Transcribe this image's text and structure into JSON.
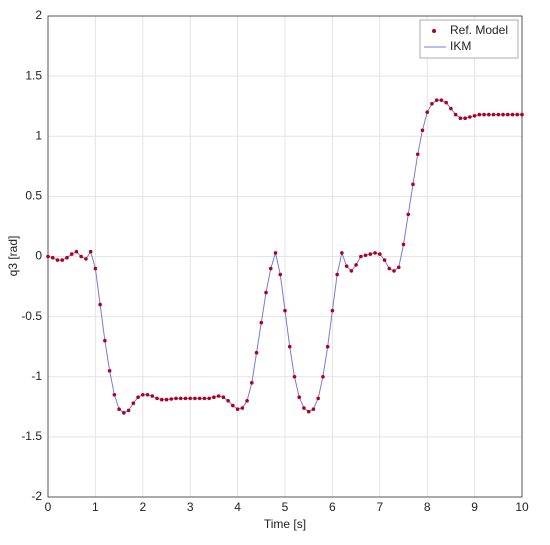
{
  "chart_data": {
    "type": "line",
    "xlabel": "Time [s]",
    "ylabel": "q3 [rad]",
    "x": [
      0,
      0.1,
      0.2,
      0.3,
      0.4,
      0.5,
      0.6,
      0.7,
      0.8,
      0.9,
      1,
      1.1,
      1.2,
      1.3,
      1.4,
      1.5,
      1.6,
      1.7,
      1.8,
      1.9,
      2,
      2.1,
      2.2,
      2.3,
      2.4,
      2.5,
      2.6,
      2.7,
      2.8,
      2.9,
      3,
      3.1,
      3.2,
      3.3,
      3.4,
      3.5,
      3.6,
      3.7,
      3.8,
      3.9,
      4,
      4.1,
      4.2,
      4.3,
      4.4,
      4.5,
      4.6,
      4.7,
      4.8,
      4.9,
      5,
      5.1,
      5.2,
      5.3,
      5.4,
      5.5,
      5.6,
      5.7,
      5.8,
      5.9,
      6,
      6.1,
      6.2,
      6.3,
      6.4,
      6.5,
      6.6,
      6.7,
      6.8,
      6.9,
      7,
      7.1,
      7.2,
      7.3,
      7.4,
      7.5,
      7.6,
      7.7,
      7.8,
      7.9,
      8,
      8.1,
      8.2,
      8.3,
      8.4,
      8.5,
      8.6,
      8.7,
      8.8,
      8.9,
      9,
      9.1,
      9.2,
      9.3,
      9.4,
      9.5,
      9.6,
      9.7,
      9.8,
      9.9,
      10
    ],
    "series": [
      {
        "name": "Ref. Model",
        "color": "#b0001e",
        "marker": "dot",
        "values": [
          0,
          -0.01,
          -0.03,
          -0.03,
          -0.01,
          0.02,
          0.04,
          0,
          -0.02,
          0.04,
          -0.1,
          -0.4,
          -0.7,
          -0.95,
          -1.15,
          -1.27,
          -1.3,
          -1.28,
          -1.22,
          -1.17,
          -1.15,
          -1.15,
          -1.16,
          -1.18,
          -1.19,
          -1.19,
          -1.185,
          -1.18,
          -1.18,
          -1.18,
          -1.18,
          -1.18,
          -1.18,
          -1.18,
          -1.18,
          -1.17,
          -1.16,
          -1.17,
          -1.2,
          -1.24,
          -1.27,
          -1.26,
          -1.2,
          -1.05,
          -0.8,
          -0.55,
          -0.3,
          -0.1,
          0.03,
          -0.15,
          -0.45,
          -0.75,
          -1,
          -1.17,
          -1.26,
          -1.29,
          -1.27,
          -1.18,
          -1,
          -0.75,
          -0.45,
          -0.15,
          0.03,
          -0.08,
          -0.12,
          -0.07,
          0,
          0.01,
          0.02,
          0.03,
          0.02,
          -0.03,
          -0.1,
          -0.12,
          -0.09,
          0.1,
          0.35,
          0.6,
          0.85,
          1.05,
          1.2,
          1.27,
          1.3,
          1.3,
          1.28,
          1.23,
          1.18,
          1.15,
          1.15,
          1.16,
          1.17,
          1.18,
          1.18,
          1.18,
          1.18,
          1.18,
          1.18,
          1.18,
          1.18,
          1.18,
          1.18
        ]
      },
      {
        "name": "IKM",
        "color": "#7a7ad8",
        "marker": "line",
        "values": [
          0,
          -0.01,
          -0.03,
          -0.03,
          -0.01,
          0.02,
          0.04,
          0,
          -0.02,
          0.04,
          -0.1,
          -0.4,
          -0.7,
          -0.95,
          -1.15,
          -1.27,
          -1.3,
          -1.28,
          -1.22,
          -1.17,
          -1.15,
          -1.15,
          -1.16,
          -1.18,
          -1.19,
          -1.19,
          -1.185,
          -1.18,
          -1.18,
          -1.18,
          -1.18,
          -1.18,
          -1.18,
          -1.18,
          -1.18,
          -1.17,
          -1.16,
          -1.17,
          -1.2,
          -1.24,
          -1.27,
          -1.26,
          -1.2,
          -1.05,
          -0.8,
          -0.55,
          -0.3,
          -0.1,
          0.03,
          -0.15,
          -0.45,
          -0.75,
          -1,
          -1.17,
          -1.26,
          -1.29,
          -1.27,
          -1.18,
          -1,
          -0.75,
          -0.45,
          -0.15,
          0.03,
          -0.08,
          -0.12,
          -0.07,
          0,
          0.01,
          0.02,
          0.03,
          0.02,
          -0.03,
          -0.1,
          -0.12,
          -0.09,
          0.1,
          0.35,
          0.6,
          0.85,
          1.05,
          1.2,
          1.27,
          1.3,
          1.3,
          1.28,
          1.23,
          1.18,
          1.15,
          1.15,
          1.16,
          1.17,
          1.18,
          1.18,
          1.18,
          1.18,
          1.18,
          1.18,
          1.18,
          1.18,
          1.18,
          1.18
        ]
      }
    ],
    "xlim": [
      0,
      10
    ],
    "xticks": [
      0,
      1,
      2,
      3,
      4,
      5,
      6,
      7,
      8,
      9,
      10
    ],
    "ylim": [
      -2,
      2
    ],
    "yticks": [
      -2,
      -1.5,
      -1,
      -0.5,
      0,
      0.5,
      1,
      1.5,
      2
    ],
    "grid": true,
    "legend": "upper-right"
  }
}
